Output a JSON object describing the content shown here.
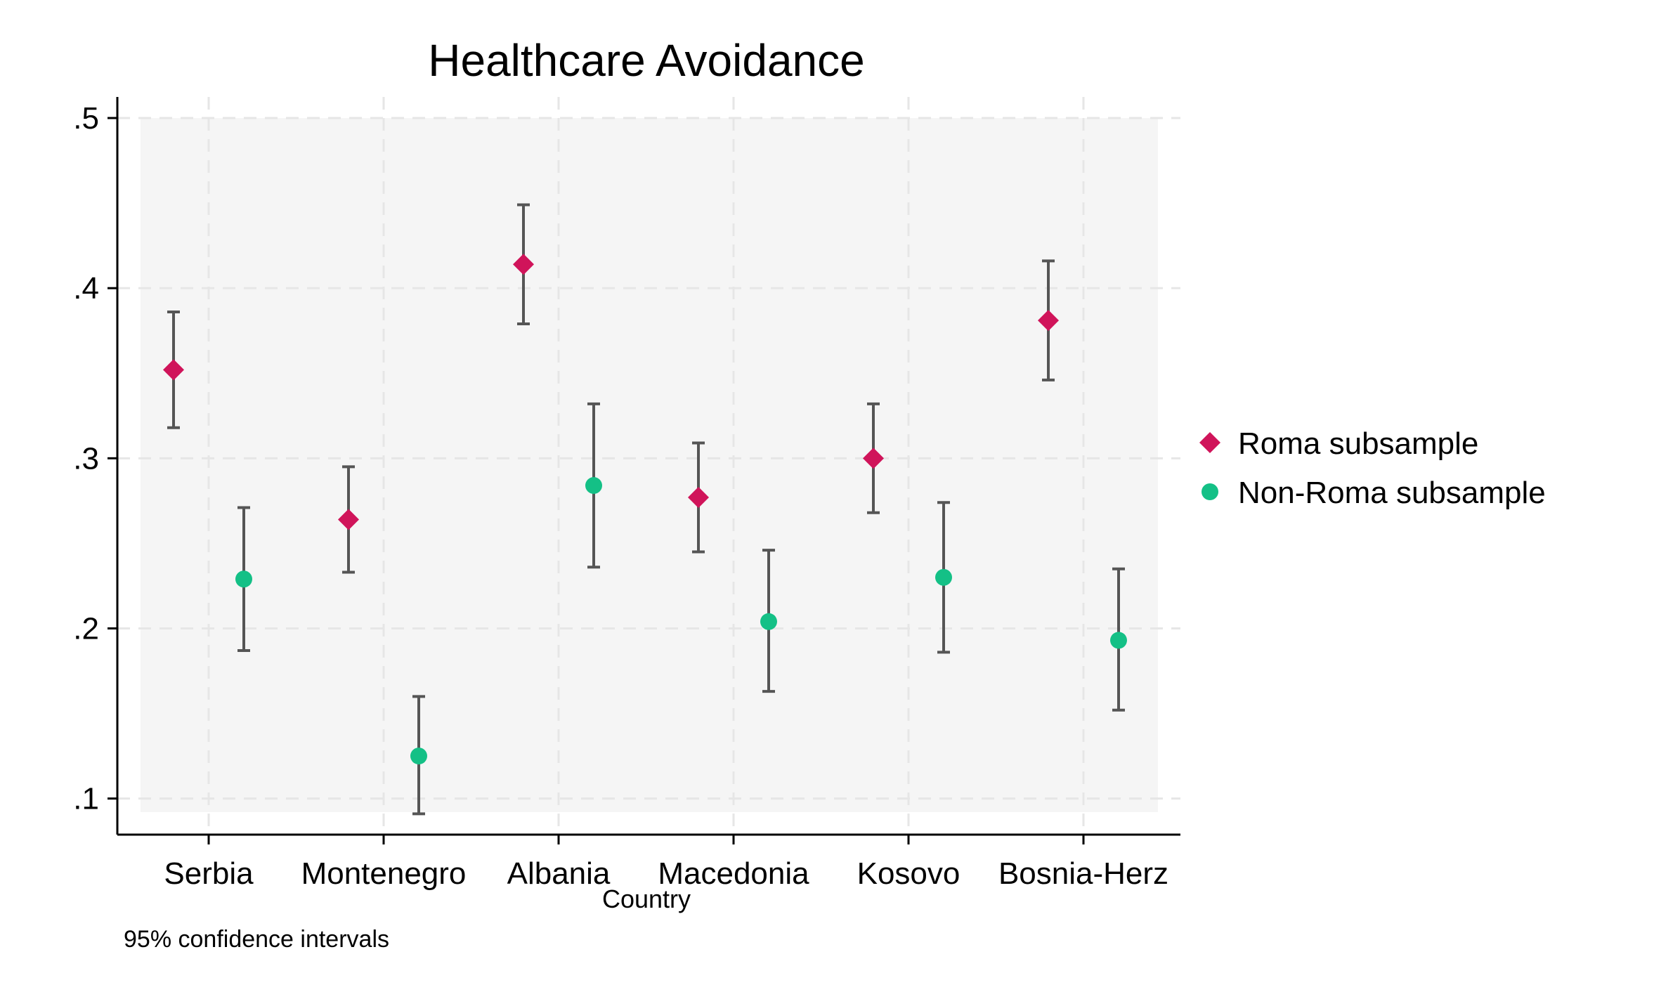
{
  "chart_data": {
    "type": "scatter",
    "title": "Healthcare Avoidance",
    "xlabel": "Country",
    "ylabel": "",
    "note": "95% confidence intervals",
    "categories": [
      "Serbia",
      "Montenegro",
      "Albania",
      "Macedonia",
      "Kosovo",
      "Bosnia-Herz"
    ],
    "yticks": [
      0.1,
      0.2,
      0.3,
      0.4,
      0.5
    ],
    "ytick_labels": [
      ".1",
      ".2",
      ".3",
      ".4",
      ".5"
    ],
    "ylim": [
      0.092,
      0.5
    ],
    "grid": true,
    "legend_position": "right",
    "series": [
      {
        "name": "Roma subsample",
        "marker": "diamond",
        "color": "#d0145a",
        "values": [
          0.352,
          0.264,
          0.414,
          0.277,
          0.3,
          0.381
        ],
        "ci_low": [
          0.318,
          0.233,
          0.379,
          0.245,
          0.268,
          0.346
        ],
        "ci_high": [
          0.386,
          0.295,
          0.449,
          0.309,
          0.332,
          0.416
        ]
      },
      {
        "name": "Non-Roma subsample",
        "marker": "circle",
        "color": "#14c086",
        "values": [
          0.229,
          0.125,
          0.284,
          0.204,
          0.23,
          0.193
        ],
        "ci_low": [
          0.187,
          0.091,
          0.236,
          0.163,
          0.186,
          0.152
        ],
        "ci_high": [
          0.271,
          0.16,
          0.332,
          0.246,
          0.274,
          0.235
        ]
      }
    ],
    "colors": {
      "plot_background": "#f5f5f5",
      "grid": "#e6e6e6",
      "error_bar": "#555555",
      "axis": "#000000"
    }
  }
}
